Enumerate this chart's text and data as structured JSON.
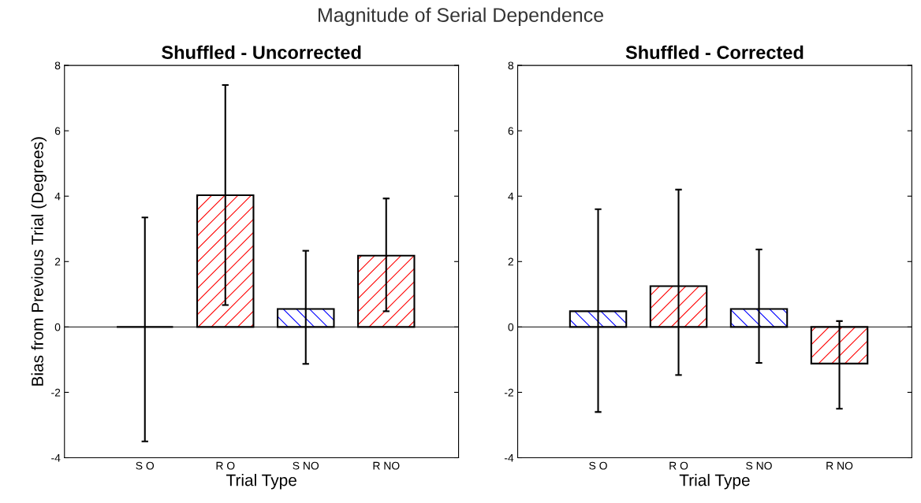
{
  "chart_data": [
    {
      "type": "bar",
      "title": "Shuffled - Uncorrected",
      "xlabel": "Trial Type",
      "ylabel": "Bias from Previous Trial (Degrees)",
      "annotations": [
        "Magnitude of Serial Dependence"
      ],
      "categories": [
        "S O",
        "R O",
        "S NO",
        "R NO"
      ],
      "values": [
        0,
        4.03,
        0.55,
        2.18
      ],
      "errors": [
        [
          -3.5,
          3.35
        ],
        [
          0.67,
          7.4
        ],
        [
          -1.13,
          2.33
        ],
        [
          0.48,
          3.93
        ]
      ],
      "colors": [
        "#000000",
        "#ff0000",
        "#0000ff",
        "#ff0000"
      ],
      "ylim": [
        -4,
        8
      ],
      "yticks": [
        -4,
        -2,
        0,
        2,
        4,
        6,
        8
      ],
      "ref_lines": [
        {
          "axis": "y",
          "value": 0,
          "color": "#000000"
        }
      ],
      "grid": false,
      "legend": false
    },
    {
      "type": "bar",
      "title": "Shuffled - Corrected",
      "xlabel": "Trial Type",
      "categories": [
        "S O",
        "R O",
        "S NO",
        "R NO"
      ],
      "values": [
        0.48,
        1.25,
        0.55,
        -1.12
      ],
      "errors": [
        [
          -2.6,
          3.6
        ],
        [
          -1.47,
          4.2
        ],
        [
          -1.1,
          2.37
        ],
        [
          -2.5,
          0.18
        ]
      ],
      "colors": [
        "#0000ff",
        "#ff0000",
        "#0000ff",
        "#ff0000"
      ],
      "ylim": [
        -4,
        8
      ],
      "yticks": [
        -4,
        -2,
        0,
        2,
        4,
        6,
        8
      ],
      "ref_lines": [
        {
          "axis": "y",
          "value": 0,
          "color": "#000000"
        }
      ],
      "grid": false,
      "legend": false
    }
  ]
}
